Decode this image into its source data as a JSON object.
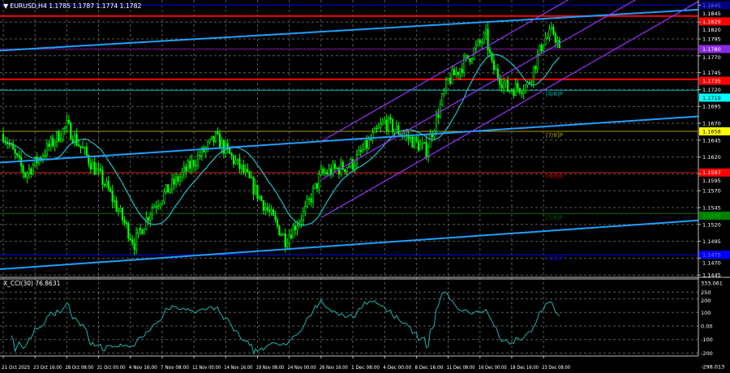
{
  "window": {
    "symbol_label": "EURUSD,H4",
    "ohlc": "1.1785 1.1787 1.1774 1.1782",
    "arrow_icon": "triangle-down"
  },
  "cci": {
    "label": "X_CCI(30) 76.8631",
    "period": 30,
    "axis_labels": [
      {
        "text": "333.061",
        "value": 333.061
      },
      {
        "text": "250",
        "value": 250
      },
      {
        "text": "200",
        "value": 200
      },
      {
        "text": "100",
        "value": 100
      },
      {
        "text": "0.00",
        "value": 0
      },
      {
        "text": "-100",
        "value": -100
      },
      {
        "text": "-200",
        "value": -200
      },
      {
        "text": "-298.013",
        "value": -298.013
      }
    ],
    "range": [
      -298.013,
      333.061
    ],
    "line_color": "#20b2aa"
  },
  "chart_data": {
    "type": "candlestick",
    "symbol": "EURUSD",
    "timeframe": "H4",
    "grid": true,
    "ylim": [
      1.144,
      1.1852
    ],
    "price_ticks": [
      "1.1845",
      "1.1820",
      "1.1795",
      "1.1770",
      "1.1745",
      "1.1720",
      "1.1695",
      "1.1670",
      "1.1645",
      "1.1620",
      "1.1595",
      "1.1570",
      "1.1545",
      "1.1520",
      "1.1495",
      "1.1470",
      "1.1445"
    ],
    "time_labels": [
      "21 Oct 2025",
      "23 Oct 16:00",
      "28 Oct 08:00",
      "31 Oct 00:00",
      "4 Nov 16:00",
      "7 Nov 08:00",
      "12 Nov 00:00",
      "14 Nov 16:00",
      "19 Nov 08:00",
      "24 Nov 00:00",
      "26 Nov 16:00",
      "1 Dec 08:00",
      "4 Dec 00:00",
      "8 Dec 16:00",
      "11 Dec 08:00",
      "16 Dec 00:00",
      "18 Dec 16:00",
      "23 Dec 08:00"
    ],
    "close_path": [
      {
        "t": "2025-10-21 00:00",
        "close": 1.1654
      },
      {
        "t": "2025-10-22 20:00",
        "close": 1.1594
      },
      {
        "t": "2025-10-28 08:00",
        "close": 1.1666
      },
      {
        "t": "2025-10-31 16:00",
        "close": 1.1576
      },
      {
        "t": "2025-11-05 00:00",
        "close": 1.1492
      },
      {
        "t": "2025-11-06 12:00",
        "close": 1.1546
      },
      {
        "t": "2025-11-13 20:00",
        "close": 1.1648
      },
      {
        "t": "2025-11-18 08:00",
        "close": 1.1594
      },
      {
        "t": "2025-11-21 16:00",
        "close": 1.1498
      },
      {
        "t": "2025-11-25 08:00",
        "close": 1.154
      },
      {
        "t": "2025-11-26 16:00",
        "close": 1.1594
      },
      {
        "t": "2025-12-01 08:00",
        "close": 1.161
      },
      {
        "t": "2025-12-04 00:00",
        "close": 1.1672
      },
      {
        "t": "2025-12-09 12:00",
        "close": 1.163
      },
      {
        "t": "2025-12-11 08:00",
        "close": 1.1733
      },
      {
        "t": "2025-12-12 00:00",
        "close": 1.1745
      },
      {
        "t": "2025-12-16 12:00",
        "close": 1.1799
      },
      {
        "t": "2025-12-17 00:00",
        "close": 1.1755
      },
      {
        "t": "2025-12-18 08:00",
        "close": 1.172
      },
      {
        "t": "2025-12-22 00:00",
        "close": 1.1726
      },
      {
        "t": "2025-12-23 08:00",
        "close": 1.1793
      },
      {
        "t": "2025-12-24 04:00",
        "close": 1.1805
      },
      {
        "t": "2025-12-24 16:00",
        "close": 1.1782
      }
    ],
    "moving_average": {
      "period": 20,
      "color": "#20c0c8"
    },
    "candle_color": "#00ff00",
    "horizontal_lines": [
      {
        "price": 1.1845,
        "color": "#000080",
        "tag": "1.1845",
        "tag_text_color": "#6070ff"
      },
      {
        "price": 1.1829,
        "color": "#ff0000",
        "tag": "1.1829",
        "tag_text_color": "#ffffff"
      },
      {
        "price": 1.178,
        "color": "#4b0f5e",
        "tag": "1.1780",
        "tag_bg": "#8a2be2",
        "tag_text_color": "#ffffff"
      },
      {
        "price": 1.1735,
        "color": "#ff0000",
        "tag": "1.1735",
        "tag_text_color": "#ffffff"
      }
    ],
    "murray_levels": [
      {
        "label": "[8/8]P",
        "price": 1.1719,
        "color": "#00b0b0",
        "tag": "1.1719",
        "tag_bg": "#00ffff",
        "tag_text_color": "#000000"
      },
      {
        "label": "[7/8]P",
        "price": 1.1658,
        "color": "#b0a000",
        "tag": "1.1658",
        "tag_bg": "#ffff00",
        "tag_text_color": "#000000"
      },
      {
        "label": "[6/8]P",
        "price": 1.1597,
        "color": "#d00000",
        "tag": "1.1597",
        "tag_bg": "#ff0000",
        "tag_text_color": "#ffffff"
      },
      {
        "label": "[5/8]P",
        "price": 1.1536,
        "color": "#006000",
        "tag": "1.1536",
        "tag_bg": "#008000",
        "tag_text_color": "#00c000"
      },
      {
        "label": "[4/8]P",
        "price": 1.1475,
        "color": "#0000e0",
        "tag": "1.1475",
        "tag_bg": "#0000ff",
        "tag_text_color": "#8080ff"
      }
    ],
    "trendlines": [
      {
        "name": "upper-trendline",
        "color": "#1ea0ff",
        "p1": {
          "t": "2025-10-21 00:00",
          "price": 1.1778
        },
        "p2": {
          "t": "2025-12-23 08:00",
          "price": 1.1825
        }
      },
      {
        "name": "middle-trendline",
        "color": "#1ea0ff",
        "p1": {
          "t": "2025-10-21 00:00",
          "price": 1.1612
        },
        "p2": {
          "t": "2025-12-23 08:00",
          "price": 1.1665
        }
      },
      {
        "name": "lower-trendline",
        "color": "#1ea0ff",
        "p1": {
          "t": "2025-10-21 00:00",
          "price": 1.1454
        },
        "p2": {
          "t": "2025-12-23 08:00",
          "price": 1.151
        }
      }
    ],
    "channel": [
      {
        "name": "channel-upper",
        "color": "#9b30ff",
        "p1": {
          "t": "2025-11-26 16:00",
          "price": 1.1643
        },
        "p2": {
          "t": "2025-12-23 08:00",
          "price": 1.1832
        }
      },
      {
        "name": "channel-middle",
        "color": "#9b30ff",
        "p1": {
          "t": "2025-11-26 16:00",
          "price": 1.1586
        },
        "p2": {
          "t": "2025-12-23 08:00",
          "price": 1.1775
        }
      },
      {
        "name": "channel-lower",
        "color": "#9b30ff",
        "p1": {
          "t": "2025-11-26 16:00",
          "price": 1.153
        },
        "p2": {
          "t": "2025-12-23 08:00",
          "price": 1.1719
        }
      }
    ]
  }
}
